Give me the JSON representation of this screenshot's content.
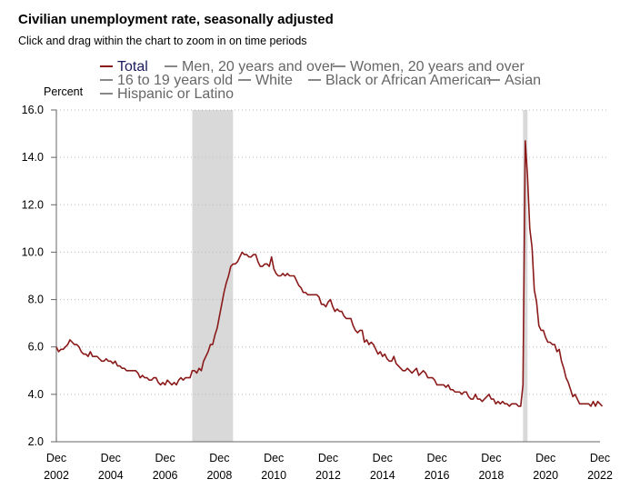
{
  "header": {
    "title": "Civilian unemployment rate, seasonally adjusted",
    "subtitle": "Click and drag within the chart to zoom in on time periods"
  },
  "legend": {
    "items": [
      {
        "label": "Total",
        "color": "#8b1a1a",
        "active": true
      },
      {
        "label": "Men, 20 years and over",
        "color": "#888888",
        "active": false
      },
      {
        "label": "Women, 20 years and over",
        "color": "#888888",
        "active": false
      },
      {
        "label": "16 to 19 years old",
        "color": "#888888",
        "active": false
      },
      {
        "label": "White",
        "color": "#888888",
        "active": false
      },
      {
        "label": "Black or African American",
        "color": "#888888",
        "active": false
      },
      {
        "label": "Asian",
        "color": "#888888",
        "active": false
      },
      {
        "label": "Hispanic or Latino",
        "color": "#888888",
        "active": false
      }
    ]
  },
  "chart_data": {
    "type": "line",
    "title": "Civilian unemployment rate, seasonally adjusted",
    "ylabel": "Percent",
    "xlabel": "",
    "ylim": [
      2.0,
      16.0
    ],
    "xlim": [
      "2002-12",
      "2022-12"
    ],
    "y_ticks": [
      "2.0",
      "4.0",
      "6.0",
      "8.0",
      "10.0",
      "12.0",
      "14.0",
      "16.0"
    ],
    "x_ticks": [
      {
        "date": "2002-12",
        "month": "Dec",
        "year": "2002"
      },
      {
        "date": "2004-12",
        "month": "Dec",
        "year": "2004"
      },
      {
        "date": "2006-12",
        "month": "Dec",
        "year": "2006"
      },
      {
        "date": "2008-12",
        "month": "Dec",
        "year": "2008"
      },
      {
        "date": "2010-12",
        "month": "Dec",
        "year": "2010"
      },
      {
        "date": "2012-12",
        "month": "Dec",
        "year": "2012"
      },
      {
        "date": "2014-12",
        "month": "Dec",
        "year": "2014"
      },
      {
        "date": "2016-12",
        "month": "Dec",
        "year": "2016"
      },
      {
        "date": "2018-12",
        "month": "Dec",
        "year": "2018"
      },
      {
        "date": "2020-12",
        "month": "Dec",
        "year": "2020"
      },
      {
        "date": "2022-12",
        "month": "Dec",
        "year": "2022"
      }
    ],
    "grid": "horizontal dotted",
    "recessions": [
      {
        "start": "2007-12",
        "end": "2009-06"
      },
      {
        "start": "2020-02",
        "end": "2020-04"
      }
    ],
    "series": [
      {
        "name": "Total",
        "color": "#8b1a1a",
        "start": "2002-12",
        "values": [
          6.0,
          5.8,
          5.9,
          5.9,
          6.0,
          6.1,
          6.3,
          6.2,
          6.1,
          6.1,
          6.0,
          5.8,
          5.7,
          5.7,
          5.6,
          5.8,
          5.6,
          5.6,
          5.6,
          5.5,
          5.4,
          5.4,
          5.5,
          5.4,
          5.4,
          5.3,
          5.4,
          5.2,
          5.2,
          5.1,
          5.1,
          5.0,
          5.0,
          5.0,
          5.0,
          5.0,
          4.9,
          4.7,
          4.8,
          4.7,
          4.7,
          4.6,
          4.6,
          4.7,
          4.7,
          4.5,
          4.4,
          4.5,
          4.4,
          4.6,
          4.5,
          4.4,
          4.5,
          4.4,
          4.6,
          4.7,
          4.6,
          4.7,
          4.7,
          4.7,
          5.0,
          5.0,
          4.9,
          5.1,
          5.0,
          5.4,
          5.6,
          5.8,
          6.1,
          6.1,
          6.5,
          6.8,
          7.3,
          7.8,
          8.3,
          8.7,
          9.0,
          9.4,
          9.5,
          9.5,
          9.6,
          9.8,
          10.0,
          9.9,
          9.9,
          9.8,
          9.8,
          9.9,
          9.9,
          9.6,
          9.4,
          9.4,
          9.5,
          9.5,
          9.4,
          9.8,
          9.3,
          9.1,
          9.0,
          9.0,
          9.1,
          9.0,
          9.1,
          9.0,
          9.0,
          9.0,
          8.8,
          8.6,
          8.5,
          8.3,
          8.3,
          8.2,
          8.2,
          8.2,
          8.2,
          8.2,
          8.1,
          7.8,
          7.8,
          7.7,
          7.9,
          8.0,
          7.7,
          7.5,
          7.6,
          7.5,
          7.5,
          7.3,
          7.2,
          7.2,
          7.2,
          6.9,
          6.7,
          6.6,
          6.7,
          6.7,
          6.2,
          6.3,
          6.1,
          6.2,
          6.1,
          5.9,
          5.7,
          5.8,
          5.6,
          5.7,
          5.5,
          5.4,
          5.4,
          5.6,
          5.3,
          5.2,
          5.1,
          5.0,
          5.0,
          5.1,
          5.0,
          4.9,
          5.0,
          5.1,
          4.8,
          4.9,
          5.0,
          4.9,
          4.7,
          4.7,
          4.7,
          4.6,
          4.4,
          4.4,
          4.4,
          4.4,
          4.3,
          4.4,
          4.2,
          4.2,
          4.1,
          4.1,
          4.1,
          4.0,
          4.1,
          4.1,
          3.9,
          3.8,
          3.8,
          4.0,
          3.8,
          3.8,
          3.7,
          3.8,
          3.9,
          4.0,
          3.8,
          3.8,
          3.6,
          3.7,
          3.6,
          3.7,
          3.6,
          3.6,
          3.5,
          3.6,
          3.6,
          3.6,
          3.5,
          3.5,
          4.4,
          14.7,
          13.2,
          11.0,
          10.2,
          8.4,
          7.9,
          6.9,
          6.7,
          6.7,
          6.4,
          6.2,
          6.2,
          6.1,
          6.1,
          5.8,
          5.9,
          5.4,
          5.1,
          4.7,
          4.5,
          4.2,
          3.9,
          4.0,
          3.8,
          3.6,
          3.6,
          3.6,
          3.6,
          3.6,
          3.5,
          3.7,
          3.5,
          3.7,
          3.6,
          3.5
        ]
      }
    ]
  }
}
